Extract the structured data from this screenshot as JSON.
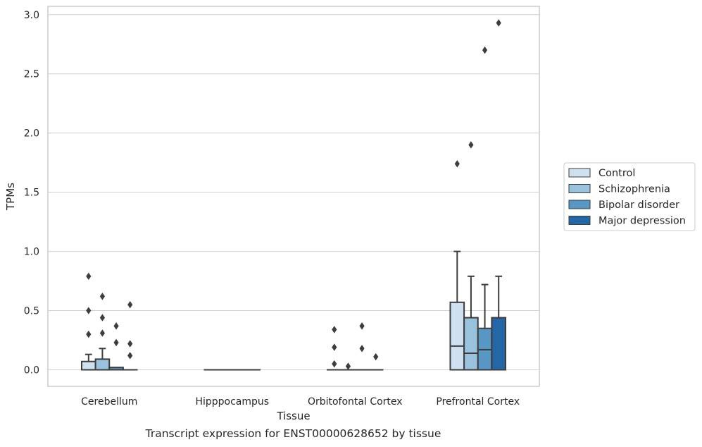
{
  "caption": "Transcript expression for ENST00000628652 by tissue",
  "chart_data": {
    "type": "box",
    "xlabel": "Tissue",
    "ylabel": "TPMs",
    "ylim": [
      -0.14,
      3.07
    ],
    "yticks": [
      "0.0",
      "0.5",
      "1.0",
      "1.5",
      "2.0",
      "2.5",
      "3.0"
    ],
    "grid": "horizontal",
    "legend_position": "right",
    "categories": [
      "Cerebellum",
      "Hipppocampus",
      "Orbitofontal Cortex",
      "Prefrontal Cortex"
    ],
    "series": [
      {
        "name": "Control",
        "color": "#cfe0f0",
        "boxes": [
          {
            "q1": 0.0,
            "median": 0.0,
            "q3": 0.07,
            "whisker_low": 0.0,
            "whisker_high": 0.13,
            "outliers": [
              0.3,
              0.5,
              0.79
            ]
          },
          {
            "q1": 0.0,
            "median": 0.0,
            "q3": 0.0,
            "whisker_low": 0.0,
            "whisker_high": 0.0,
            "outliers": []
          },
          {
            "q1": 0.0,
            "median": 0.0,
            "q3": 0.0,
            "whisker_low": 0.0,
            "whisker_high": 0.0,
            "outliers": [
              0.05,
              0.19,
              0.34
            ]
          },
          {
            "q1": 0.0,
            "median": 0.2,
            "q3": 0.57,
            "whisker_low": 0.0,
            "whisker_high": 1.0,
            "outliers": [
              1.74
            ]
          }
        ]
      },
      {
        "name": "Schizophrenia",
        "color": "#9ac2dc",
        "boxes": [
          {
            "q1": 0.0,
            "median": 0.0,
            "q3": 0.09,
            "whisker_low": 0.0,
            "whisker_high": 0.18,
            "outliers": [
              0.31,
              0.44,
              0.62
            ]
          },
          {
            "q1": 0.0,
            "median": 0.0,
            "q3": 0.0,
            "whisker_low": 0.0,
            "whisker_high": 0.0,
            "outliers": []
          },
          {
            "q1": 0.0,
            "median": 0.0,
            "q3": 0.0,
            "whisker_low": 0.0,
            "whisker_high": 0.0,
            "outliers": [
              0.03
            ]
          },
          {
            "q1": 0.0,
            "median": 0.14,
            "q3": 0.44,
            "whisker_low": 0.0,
            "whisker_high": 0.79,
            "outliers": [
              1.9
            ]
          }
        ]
      },
      {
        "name": "Bipolar disorder",
        "color": "#5896c3",
        "boxes": [
          {
            "q1": 0.0,
            "median": 0.0,
            "q3": 0.02,
            "whisker_low": 0.0,
            "whisker_high": 0.02,
            "outliers": [
              0.23,
              0.37
            ]
          },
          {
            "q1": 0.0,
            "median": 0.0,
            "q3": 0.0,
            "whisker_low": 0.0,
            "whisker_high": 0.0,
            "outliers": []
          },
          {
            "q1": 0.0,
            "median": 0.0,
            "q3": 0.0,
            "whisker_low": 0.0,
            "whisker_high": 0.0,
            "outliers": [
              0.18,
              0.37
            ]
          },
          {
            "q1": 0.0,
            "median": 0.17,
            "q3": 0.35,
            "whisker_low": 0.0,
            "whisker_high": 0.72,
            "outliers": [
              2.7
            ]
          }
        ]
      },
      {
        "name": "Major depression",
        "color": "#2566a6",
        "boxes": [
          {
            "q1": 0.0,
            "median": 0.0,
            "q3": 0.0,
            "whisker_low": 0.0,
            "whisker_high": 0.0,
            "outliers": [
              0.12,
              0.22,
              0.55
            ]
          },
          {
            "q1": 0.0,
            "median": 0.0,
            "q3": 0.0,
            "whisker_low": 0.0,
            "whisker_high": 0.0,
            "outliers": []
          },
          {
            "q1": 0.0,
            "median": 0.0,
            "q3": 0.0,
            "whisker_low": 0.0,
            "whisker_high": 0.0,
            "outliers": [
              0.11
            ]
          },
          {
            "q1": 0.0,
            "median": 0.0,
            "q3": 0.44,
            "whisker_low": 0.0,
            "whisker_high": 0.79,
            "outliers": [
              2.93
            ]
          }
        ]
      }
    ]
  }
}
